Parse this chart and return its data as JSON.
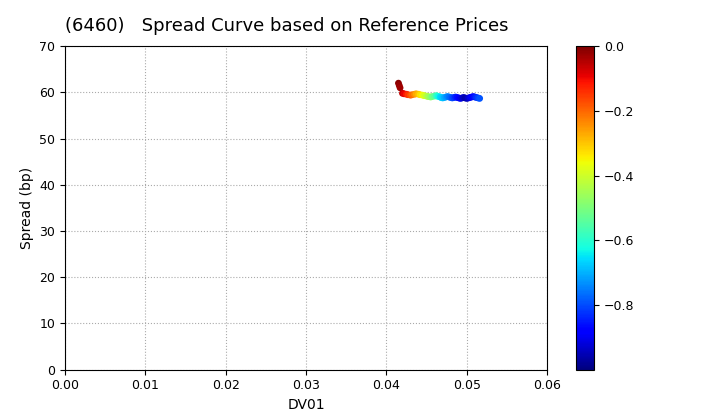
{
  "title": "(6460)   Spread Curve based on Reference Prices",
  "xlabel": "DV01",
  "ylabel": "Spread (bp)",
  "xlim": [
    0.0,
    0.06
  ],
  "ylim": [
    0,
    70
  ],
  "xticks": [
    0.0,
    0.01,
    0.02,
    0.03,
    0.04,
    0.05,
    0.06
  ],
  "yticks": [
    0,
    10,
    20,
    30,
    40,
    50,
    60,
    70
  ],
  "clim": [
    -1.0,
    0.0
  ],
  "cticks": [
    0.0,
    -0.2,
    -0.4,
    -0.6,
    -0.8
  ],
  "scatter_dv01": [
    0.0415,
    0.0416,
    0.0417,
    0.042,
    0.0422,
    0.0425,
    0.0427,
    0.043,
    0.0432,
    0.0435,
    0.0437,
    0.044,
    0.0442,
    0.0445,
    0.0447,
    0.045,
    0.0452,
    0.0455,
    0.0457,
    0.046,
    0.0462,
    0.0463,
    0.0465,
    0.0467,
    0.0468,
    0.047,
    0.0472,
    0.0474,
    0.0476,
    0.0478,
    0.048,
    0.0482,
    0.0484,
    0.0486,
    0.0488,
    0.049,
    0.0492,
    0.0494,
    0.0496,
    0.0498,
    0.05,
    0.0502,
    0.0504,
    0.0506,
    0.0508,
    0.051,
    0.0512,
    0.0514,
    0.0516
  ],
  "scatter_spread": [
    62.0,
    61.5,
    61.0,
    59.8,
    59.7,
    59.6,
    59.5,
    59.4,
    59.5,
    59.6,
    59.7,
    59.6,
    59.5,
    59.4,
    59.3,
    59.2,
    59.1,
    59.0,
    59.1,
    59.2,
    59.3,
    59.2,
    59.1,
    59.0,
    58.9,
    58.8,
    58.9,
    59.0,
    59.1,
    59.0,
    58.9,
    58.8,
    58.9,
    59.0,
    58.9,
    58.8,
    58.7,
    58.8,
    58.9,
    58.8,
    58.7,
    58.8,
    58.9,
    59.0,
    59.1,
    59.0,
    58.9,
    58.8,
    58.7
  ],
  "scatter_time": [
    -0.01,
    -0.02,
    -0.03,
    -0.06,
    -0.09,
    -0.12,
    -0.15,
    -0.18,
    -0.21,
    -0.24,
    -0.27,
    -0.3,
    -0.33,
    -0.36,
    -0.39,
    -0.42,
    -0.45,
    -0.48,
    -0.51,
    -0.54,
    -0.57,
    -0.6,
    -0.63,
    -0.66,
    -0.67,
    -0.68,
    -0.7,
    -0.72,
    -0.74,
    -0.76,
    -0.78,
    -0.8,
    -0.82,
    -0.84,
    -0.86,
    -0.88,
    -0.9,
    -0.92,
    -0.94,
    -0.96,
    -0.95,
    -0.93,
    -0.91,
    -0.89,
    -0.87,
    -0.85,
    -0.83,
    -0.81,
    -0.79
  ],
  "marker_size": 15,
  "background_color": "#ffffff",
  "grid_color": "#aaaaaa",
  "title_fontsize": 13,
  "label_fontsize": 10,
  "tick_fontsize": 9,
  "colorbar_fontsize": 8
}
